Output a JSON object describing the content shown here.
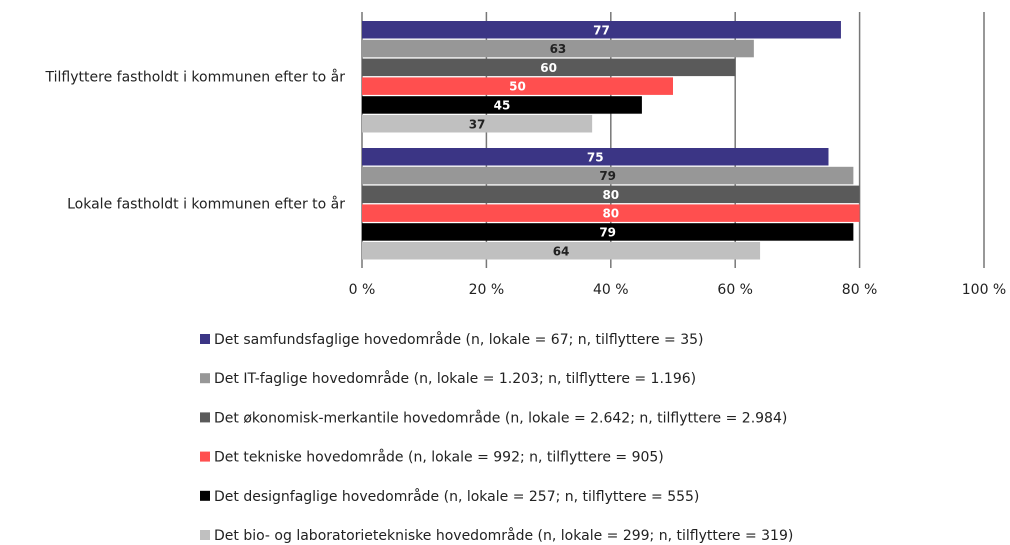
{
  "chart_data": {
    "type": "barh",
    "categories": [
      "Tilflyttere fastholdt i kommunen efter to år",
      "Lokale fastholdt i kommunen efter to år"
    ],
    "series": [
      {
        "name": "Det samfundsfaglige hovedområde (n, lokale = 67; n, tilflyttere = 35)",
        "color": "#3b3585",
        "values": [
          77,
          75
        ]
      },
      {
        "name": "Det IT-faglige hovedområde (n, lokale = 1.203; n, tilflyttere = 1.196)",
        "color": "#979797",
        "values": [
          63,
          79
        ]
      },
      {
        "name": "Det økonomisk-merkantile hovedområde (n, lokale = 2.642; n, tilflyttere = 2.984)",
        "color": "#5a5a5a",
        "values": [
          60,
          80
        ]
      },
      {
        "name": "Det tekniske hovedområde (n, lokale = 992; n, tilflyttere = 905)",
        "color": "#ff4f4f",
        "values": [
          50,
          80
        ]
      },
      {
        "name": "Det designfaglige hovedområde (n, lokale = 257; n, tilflyttere = 555)",
        "color": "#000000",
        "values": [
          45,
          79
        ]
      },
      {
        "name": "Det bio- og laboratorietekniske hovedområde (n, lokale = 299; n, tilflyttere = 319)",
        "color": "#c0c0c0",
        "values": [
          37,
          64
        ]
      }
    ],
    "xlim": [
      0,
      100
    ],
    "xticks": [
      {
        "value": 0,
        "label": "0 %"
      },
      {
        "value": 20,
        "label": "20 %"
      },
      {
        "value": 40,
        "label": "40 %"
      },
      {
        "value": 60,
        "label": "60 %"
      },
      {
        "value": 80,
        "label": "80 %"
      },
      {
        "value": 100,
        "label": "100 %"
      }
    ],
    "grid": true,
    "legend": "bottom"
  }
}
